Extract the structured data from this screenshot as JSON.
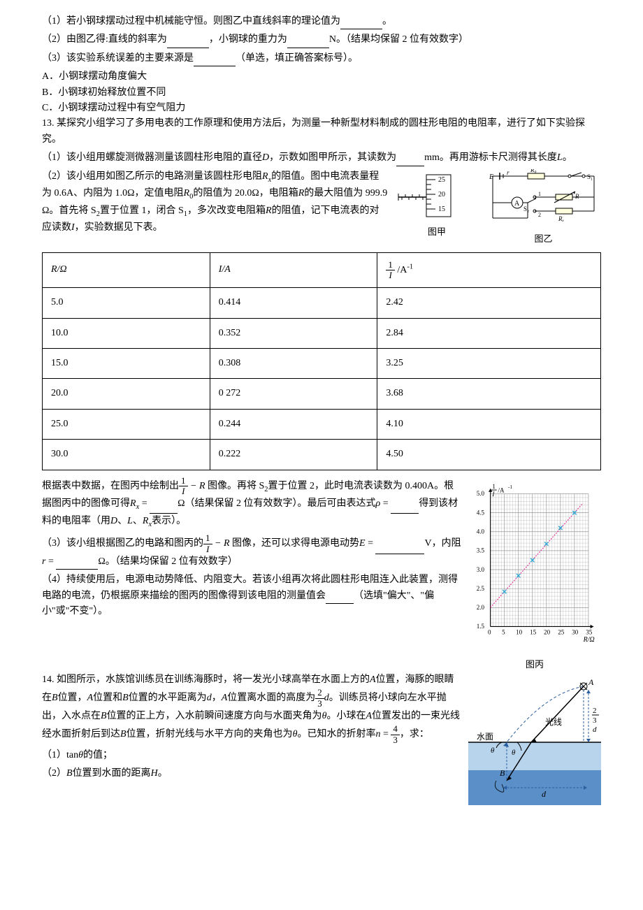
{
  "q12": {
    "part1": "（1）若小钢球摆动过程中机械能守恒。则图乙中直线斜率的理论值为",
    "part1_end": "。",
    "part2_a": "（2）由图乙得:直线的斜率为",
    "part2_b": "，小钢球的重力为",
    "part2_c": "N。（结果均保留 2 位有效数字）",
    "part3": "（3）该实验系统误差的主要来源是",
    "part3_end": "（单选，填正确答案标号）。",
    "optA": "A．小钢球摆动角度偏大",
    "optB": "B．小钢球初始释放位置不同",
    "optC": "C．小钢球摆动过程中有空气阻力"
  },
  "q13": {
    "intro": "13. 某探究小组学习了多用电表的工作原理和使用方法后，为测量一种新型材料制成的圆柱形电阻的电阻率，进行了如下实验探究。",
    "p1a": "（1）该小组用螺旋测微器测量该圆柱形电阻的直径",
    "p1b": "，示数如图甲所示，其读数为",
    "p1c": "mm。再用游标卡尺测得其长度",
    "p1d": "。",
    "p2a": "（2）该小组用如图乙所示的电路测量该圆柱形电阻",
    "p2b": "的阻值。图中电流表量程为 0.6A、内阻为 1.0Ω，定值电阻",
    "p2c": "的阻值为 20.0Ω，电阻箱",
    "p2d": "的最大阻值为 999.9 Ω。首先将 S",
    "p2e": "置于位置 1，闭合 S",
    "p2f": "，多次改变电阻箱",
    "p2g": "的阻值，记下电流表的对应读数",
    "p2h": "，实验数据见下表。",
    "tbl_h1": "R/Ω",
    "tbl_h2": "I/A",
    "tbl_h3_a": "1",
    "tbl_h3_b": "I",
    "tbl_h3_c": " /A",
    "tbl_h3_d": "-1",
    "rows": [
      {
        "r": "5.0",
        "i": "0.414",
        "inv": "2.42"
      },
      {
        "r": "10.0",
        "i": "0.352",
        "inv": "2.84"
      },
      {
        "r": "15.0",
        "i": "0.308",
        "inv": "3.25"
      },
      {
        "r": "20.0",
        "i": "0 272",
        "inv": "3.68"
      },
      {
        "r": "25.0",
        "i": "0.244",
        "inv": "4.10"
      },
      {
        "r": "30.0",
        "i": "0.222",
        "inv": "4.50"
      }
    ],
    "mid_a": "根据表中数据，在图丙中绘制出",
    "mid_b": "图像。再将 S",
    "mid_c": "置于位置 2，此时电流表读数为 0.400A。根据图丙中的图像可得",
    "mid_d": "Ω（结果保留 2 位有效数字）。最后可由表达式",
    "mid_e": "得到该材料的电阻率（用",
    "mid_f": "、",
    "mid_g": "、",
    "mid_h": "表示）。",
    "p3a": "（3）该小组根据图乙的电路和图丙的",
    "p3b": "图像，还可以求得电源电动势",
    "p3c": "V，内阻",
    "p3d": "Ω。（结果均保留 2 位有效数字）",
    "p4": "（4）持续使用后，电源电动势降低、内阻变大。若该小组再次将此圆柱形电阻连入此装置，测得电路的电流，仍根据原来描绘的图丙的图像得到该电阻的测量值会",
    "p4_end": "（选填\"偏大\"、\"偏小\"或\"不变\"）。",
    "fig_jia": "图甲",
    "fig_yi": "图乙",
    "fig_bing": "图丙",
    "micro_ticks": [
      "25",
      "20",
      "15"
    ],
    "circuit_labels": {
      "E": "E",
      "r": "r",
      "R0": "R₀",
      "S1": "S₁",
      "A": "A",
      "R": "R",
      "S2": "S₂",
      "Rx": "Rₓ",
      "n1": "1",
      "n2": "2"
    },
    "graph": {
      "ylabel_num": "1",
      "ylabel_den": "I",
      "ylabel_unit": "/A",
      "ylabel_sup": "-1",
      "xlabel": "R/Ω",
      "yticks": [
        "1.5",
        "2.0",
        "2.5",
        "3.0",
        "3.5",
        "4.0",
        "4.5",
        "5.0"
      ],
      "xticks": [
        "0",
        "5",
        "10",
        "15",
        "20",
        "25",
        "30",
        "35"
      ],
      "points": [
        [
          5,
          2.42
        ],
        [
          10,
          2.84
        ],
        [
          15,
          3.25
        ],
        [
          20,
          3.68
        ],
        [
          25,
          4.1
        ],
        [
          30,
          4.5
        ]
      ],
      "line_color": "#e91e8c",
      "point_color": "#2ba8d6",
      "grid_color": "#000",
      "bg": "#fff"
    }
  },
  "q14": {
    "intro_a": "14. 如图所示，水族馆训练员在训练海豚时，将一发光小球高举在水面上方的",
    "intro_b": "位置，海豚的眼睛在",
    "intro_c": "位置，",
    "intro_d": "位置和",
    "intro_e": "位置的水平距离为",
    "intro_f": "，",
    "intro_g": "位置离水面的高度为",
    "intro_h": "。训练员将小球向左水平抛出，入水点在",
    "intro_i": "位置的正上方，入水前瞬间速度方向与水面夹角为",
    "intro_j": "。小球在",
    "intro_k": "位置发出的一束光线经水面折射后到达",
    "intro_l": "位置，折射光线与水平方向的夹角也为",
    "intro_m": "。已知水的折射率",
    "intro_n": "，求：",
    "q1": "（1）tan",
    "q1_end": "的值；",
    "q2_a": "（2）",
    "q2_b": "位置到水面的距离",
    "q2_c": "。",
    "frac23_n": "2",
    "frac23_d": "3",
    "frac43_n": "4",
    "frac43_d": "3",
    "diagram_labels": {
      "A": "A",
      "B": "B",
      "light": "光线",
      "water": "水面",
      "theta": "θ",
      "d": "d",
      "frac_n": "2",
      "frac_d": "3",
      "frac_var": "d"
    },
    "diagram_colors": {
      "sky": "#ffffff",
      "water": "#5a8fc7",
      "water_light": "#b8d4ed",
      "dash": "#2b5fa0",
      "line": "#000"
    }
  }
}
